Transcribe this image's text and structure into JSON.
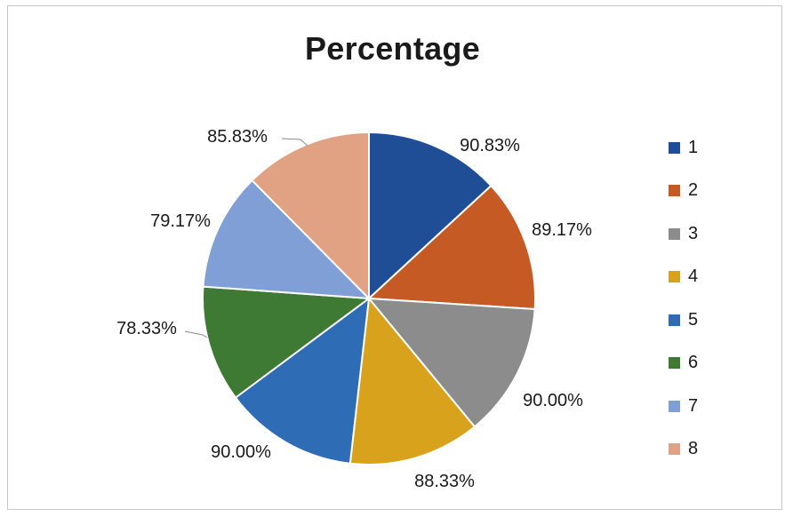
{
  "chart_data": {
    "type": "pie",
    "title": "Percentage",
    "categories": [
      "1",
      "2",
      "3",
      "4",
      "5",
      "6",
      "7",
      "8"
    ],
    "values": [
      90.83,
      89.17,
      90.0,
      88.33,
      90.0,
      78.33,
      79.17,
      85.83
    ],
    "data_labels": [
      "90.83%",
      "89.17%",
      "90.00%",
      "88.33%",
      "90.00%",
      "78.33%",
      "79.17%",
      "85.83%"
    ],
    "colors": [
      "#1f4e96",
      "#c55a25",
      "#8c8c8c",
      "#d9a21d",
      "#2e6cb5",
      "#3e7a34",
      "#7f9fd6",
      "#e0a283"
    ],
    "legend_position": "right"
  }
}
